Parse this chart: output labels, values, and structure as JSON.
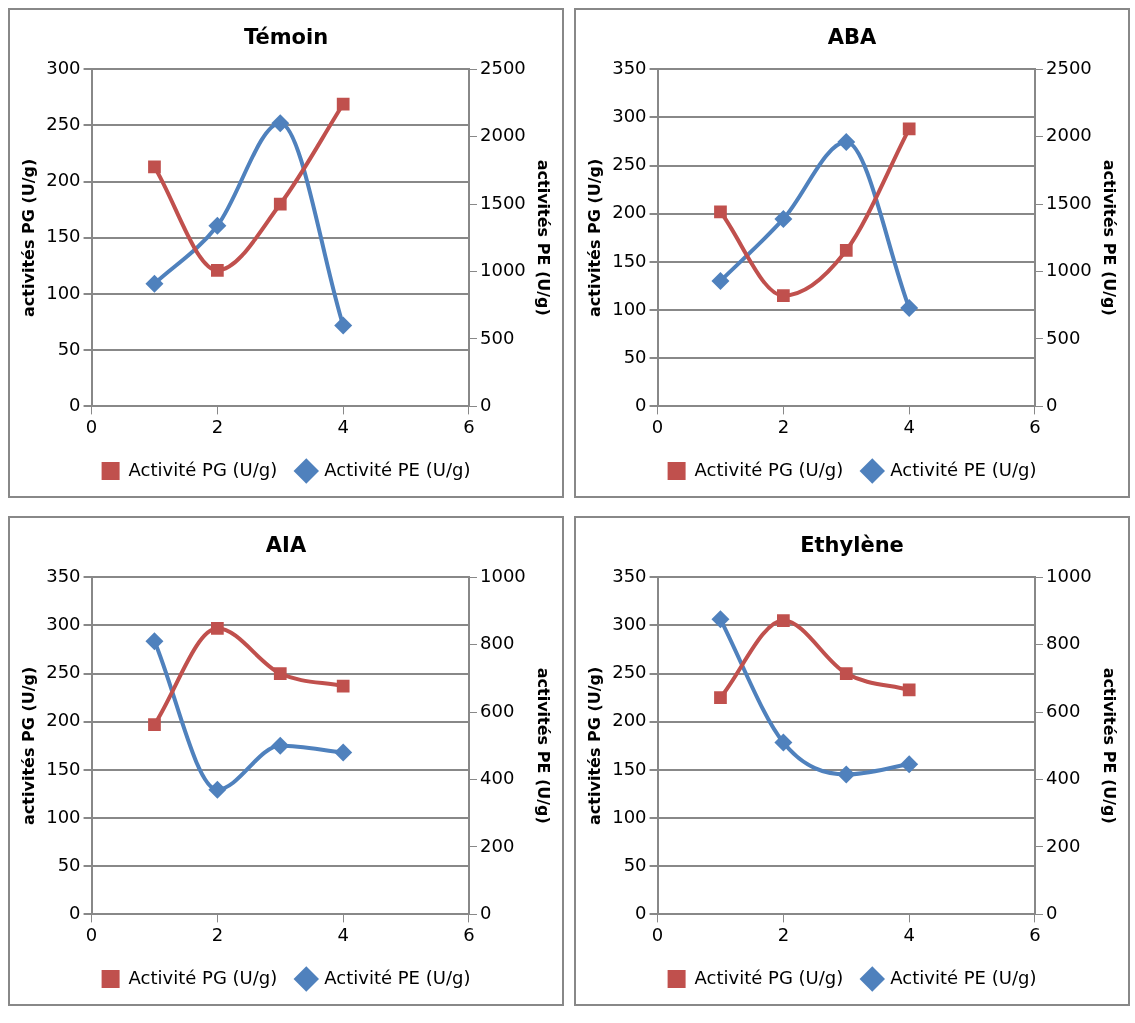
{
  "chart_data": [
    {
      "type": "line",
      "title": "Témoin",
      "ylabel": "activités PG (U/g)",
      "y2label": "activités PE (U/g)",
      "x": [
        1,
        2,
        3,
        4
      ],
      "xlim": [
        0,
        6
      ],
      "xticks": [
        0,
        2,
        4,
        6
      ],
      "ylim": [
        0,
        300
      ],
      "yticks": [
        0,
        50,
        100,
        150,
        200,
        250,
        300
      ],
      "y2lim": [
        0,
        2500
      ],
      "y2ticks": [
        0,
        500,
        1000,
        1500,
        2000,
        2500
      ],
      "grid": "y",
      "legend": "bottom",
      "series": [
        {
          "name": "Activité PG (U/g)",
          "color": "#c0504d",
          "marker": "square",
          "values": [
            213,
            121,
            180,
            269
          ]
        },
        {
          "name": "Activité PE (U/g)",
          "color": "#4f81bd",
          "marker": "diamond",
          "axis": "y2",
          "values": [
            910,
            1340,
            2100,
            600
          ]
        }
      ]
    },
    {
      "type": "line",
      "title": "ABA",
      "ylabel": "activités PG (U/g)",
      "y2label": "activités PE (U/g)",
      "x": [
        1,
        2,
        3,
        4
      ],
      "xlim": [
        0,
        6
      ],
      "xticks": [
        0,
        2,
        4,
        6
      ],
      "ylim": [
        0,
        350
      ],
      "yticks": [
        0,
        50,
        100,
        150,
        200,
        250,
        300,
        350
      ],
      "y2lim": [
        0,
        2500
      ],
      "y2ticks": [
        0,
        500,
        1000,
        1500,
        2000,
        2500
      ],
      "grid": "y",
      "legend": "bottom",
      "series": [
        {
          "name": "Activité PG (U/g)",
          "color": "#c0504d",
          "marker": "square",
          "values": [
            202,
            115,
            162,
            288
          ]
        },
        {
          "name": "Activité PE (U/g)",
          "color": "#4f81bd",
          "marker": "diamond",
          "axis": "y2",
          "values": [
            930,
            1390,
            1960,
            730
          ]
        }
      ]
    },
    {
      "type": "line",
      "title": "AIA",
      "ylabel": "activités PG (U/g)",
      "y2label": "activités PE (U/g)",
      "x": [
        1,
        2,
        3,
        4
      ],
      "xlim": [
        0,
        6
      ],
      "xticks": [
        0,
        2,
        4,
        6
      ],
      "ylim": [
        0,
        350
      ],
      "yticks": [
        0,
        50,
        100,
        150,
        200,
        250,
        300,
        350
      ],
      "y2lim": [
        0,
        1000
      ],
      "y2ticks": [
        0,
        200,
        400,
        600,
        800,
        1000
      ],
      "grid": "y",
      "legend": "bottom",
      "series": [
        {
          "name": "Activité PG (U/g)",
          "color": "#c0504d",
          "marker": "square",
          "values": [
            197,
            297,
            250,
            237
          ]
        },
        {
          "name": "Activité PE (U/g)",
          "color": "#4f81bd",
          "marker": "diamond",
          "axis": "y2",
          "values": [
            810,
            370,
            500,
            480
          ]
        }
      ]
    },
    {
      "type": "line",
      "title": "Ethylène",
      "ylabel": "activités PG (U/g)",
      "y2label": "activités PE (U/g)",
      "x": [
        1,
        2,
        3,
        4
      ],
      "xlim": [
        0,
        6
      ],
      "xticks": [
        0,
        2,
        4,
        6
      ],
      "ylim": [
        0,
        350
      ],
      "yticks": [
        0,
        50,
        100,
        150,
        200,
        250,
        300,
        350
      ],
      "y2lim": [
        0,
        1000
      ],
      "y2ticks": [
        0,
        200,
        400,
        600,
        800,
        1000
      ],
      "grid": "y",
      "legend": "bottom",
      "series": [
        {
          "name": "Activité PG (U/g)",
          "color": "#c0504d",
          "marker": "square",
          "values": [
            225,
            305,
            250,
            233
          ]
        },
        {
          "name": "Activité PE (U/g)",
          "color": "#4f81bd",
          "marker": "diamond",
          "axis": "y2",
          "values": [
            875,
            510,
            415,
            445
          ]
        }
      ]
    }
  ]
}
